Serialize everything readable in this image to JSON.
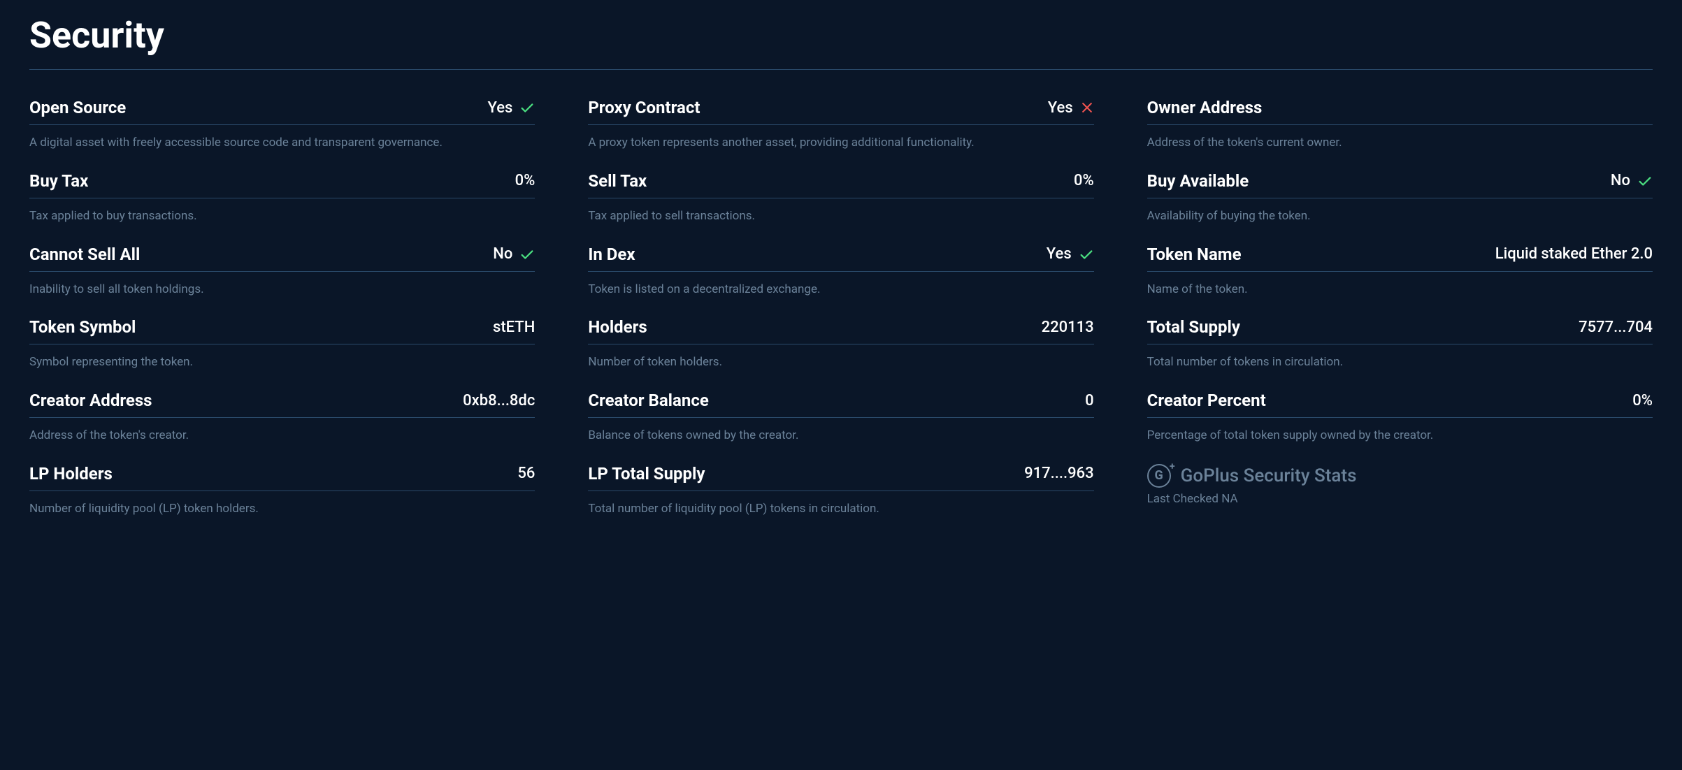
{
  "colors": {
    "background": "#0a1628",
    "text_primary": "#ffffff",
    "text_muted": "#6b8299",
    "divider": "#2a4a6a",
    "icon_good": "#4ade80",
    "icon_bad": "#ef5350"
  },
  "title": "Security",
  "cards": [
    {
      "label": "Open Source",
      "value": "Yes",
      "icon": "check",
      "desc": "A digital asset with freely accessible source code and transparent governance."
    },
    {
      "label": "Proxy Contract",
      "value": "Yes",
      "icon": "cross",
      "desc": "A proxy token represents another asset, providing additional functionality."
    },
    {
      "label": "Owner Address",
      "value": "",
      "icon": "",
      "desc": "Address of the token's current owner."
    },
    {
      "label": "Buy Tax",
      "value": "0%",
      "icon": "",
      "desc": "Tax applied to buy transactions."
    },
    {
      "label": "Sell Tax",
      "value": "0%",
      "icon": "",
      "desc": "Tax applied to sell transactions."
    },
    {
      "label": "Buy Available",
      "value": "No",
      "icon": "check",
      "desc": "Availability of buying the token."
    },
    {
      "label": "Cannot Sell All",
      "value": "No",
      "icon": "check",
      "desc": "Inability to sell all token holdings."
    },
    {
      "label": "In Dex",
      "value": "Yes",
      "icon": "check",
      "desc": "Token is listed on a decentralized exchange."
    },
    {
      "label": "Token Name",
      "value": "Liquid staked Ether 2.0",
      "icon": "",
      "desc": "Name of the token."
    },
    {
      "label": "Token Symbol",
      "value": "stETH",
      "icon": "",
      "desc": "Symbol representing the token."
    },
    {
      "label": "Holders",
      "value": "220113",
      "icon": "",
      "desc": "Number of token holders."
    },
    {
      "label": "Total Supply",
      "value": "7577...704",
      "icon": "",
      "desc": "Total number of tokens in circulation."
    },
    {
      "label": "Creator Address",
      "value": "0xb8...8dc",
      "icon": "",
      "desc": "Address of the token's creator."
    },
    {
      "label": "Creator Balance",
      "value": "0",
      "icon": "",
      "desc": "Balance of tokens owned by the creator."
    },
    {
      "label": "Creator Percent",
      "value": "0%",
      "icon": "",
      "desc": "Percentage of total token supply owned by the creator."
    },
    {
      "label": "LP Holders",
      "value": "56",
      "icon": "",
      "desc": "Number of liquidity pool (LP) token holders."
    },
    {
      "label": "LP Total Supply",
      "value": "917....963",
      "icon": "",
      "desc": "Total number of liquidity pool (LP) tokens in circulation."
    }
  ],
  "stats": {
    "logo_letter": "G",
    "title": "GoPlus Security Stats",
    "sub": "Last Checked NA"
  }
}
